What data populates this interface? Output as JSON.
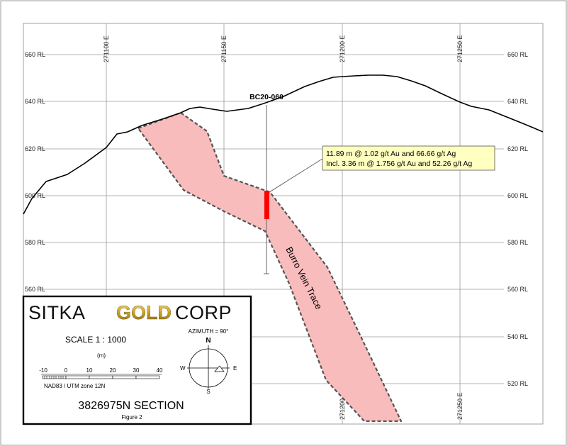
{
  "section": {
    "eastings": [
      "271100 E",
      "271150 E",
      "271200 E",
      "271250 E"
    ],
    "elevations": [
      "660 RL",
      "640 RL",
      "620 RL",
      "600 RL",
      "580 RL",
      "560 RL",
      "540 RL",
      "520 RL"
    ],
    "bottom_eastings": [
      "271200 E",
      "271250 E"
    ],
    "drillhole": "BC20-060",
    "intercept": {
      "line1": "11.89 m @ 1.02 g/t Au and 66.66 g/t Ag",
      "line2": "Incl. 3.36 m @ 1.756 g/t Au and 52.26 g/t Ag"
    },
    "vein_label": "Burro Vein Trace"
  },
  "legend": {
    "logo": {
      "sitka": "SITKA",
      "gold": "GOLD",
      "corp": "CORP"
    },
    "scale": "SCALE  1 : 1000",
    "unit": "(m)",
    "scale_ticks": [
      "-10",
      "0",
      "10",
      "20",
      "30",
      "40"
    ],
    "datum": "NAD83 / UTM zone 12N",
    "azimuth": "AZIMUTH = 90°",
    "compass": {
      "n": "N",
      "s": "S",
      "e": "E",
      "w": "W"
    },
    "title": "3826975N  SECTION",
    "figure": "Figure 2"
  },
  "colors": {
    "vein_fill": "#f9bcbc",
    "vein_outline": "#555555",
    "intercept": "#ff0000",
    "callout_fill": "#ffffc0",
    "logo_gold": "#c9a227",
    "terrain": "#000000"
  }
}
